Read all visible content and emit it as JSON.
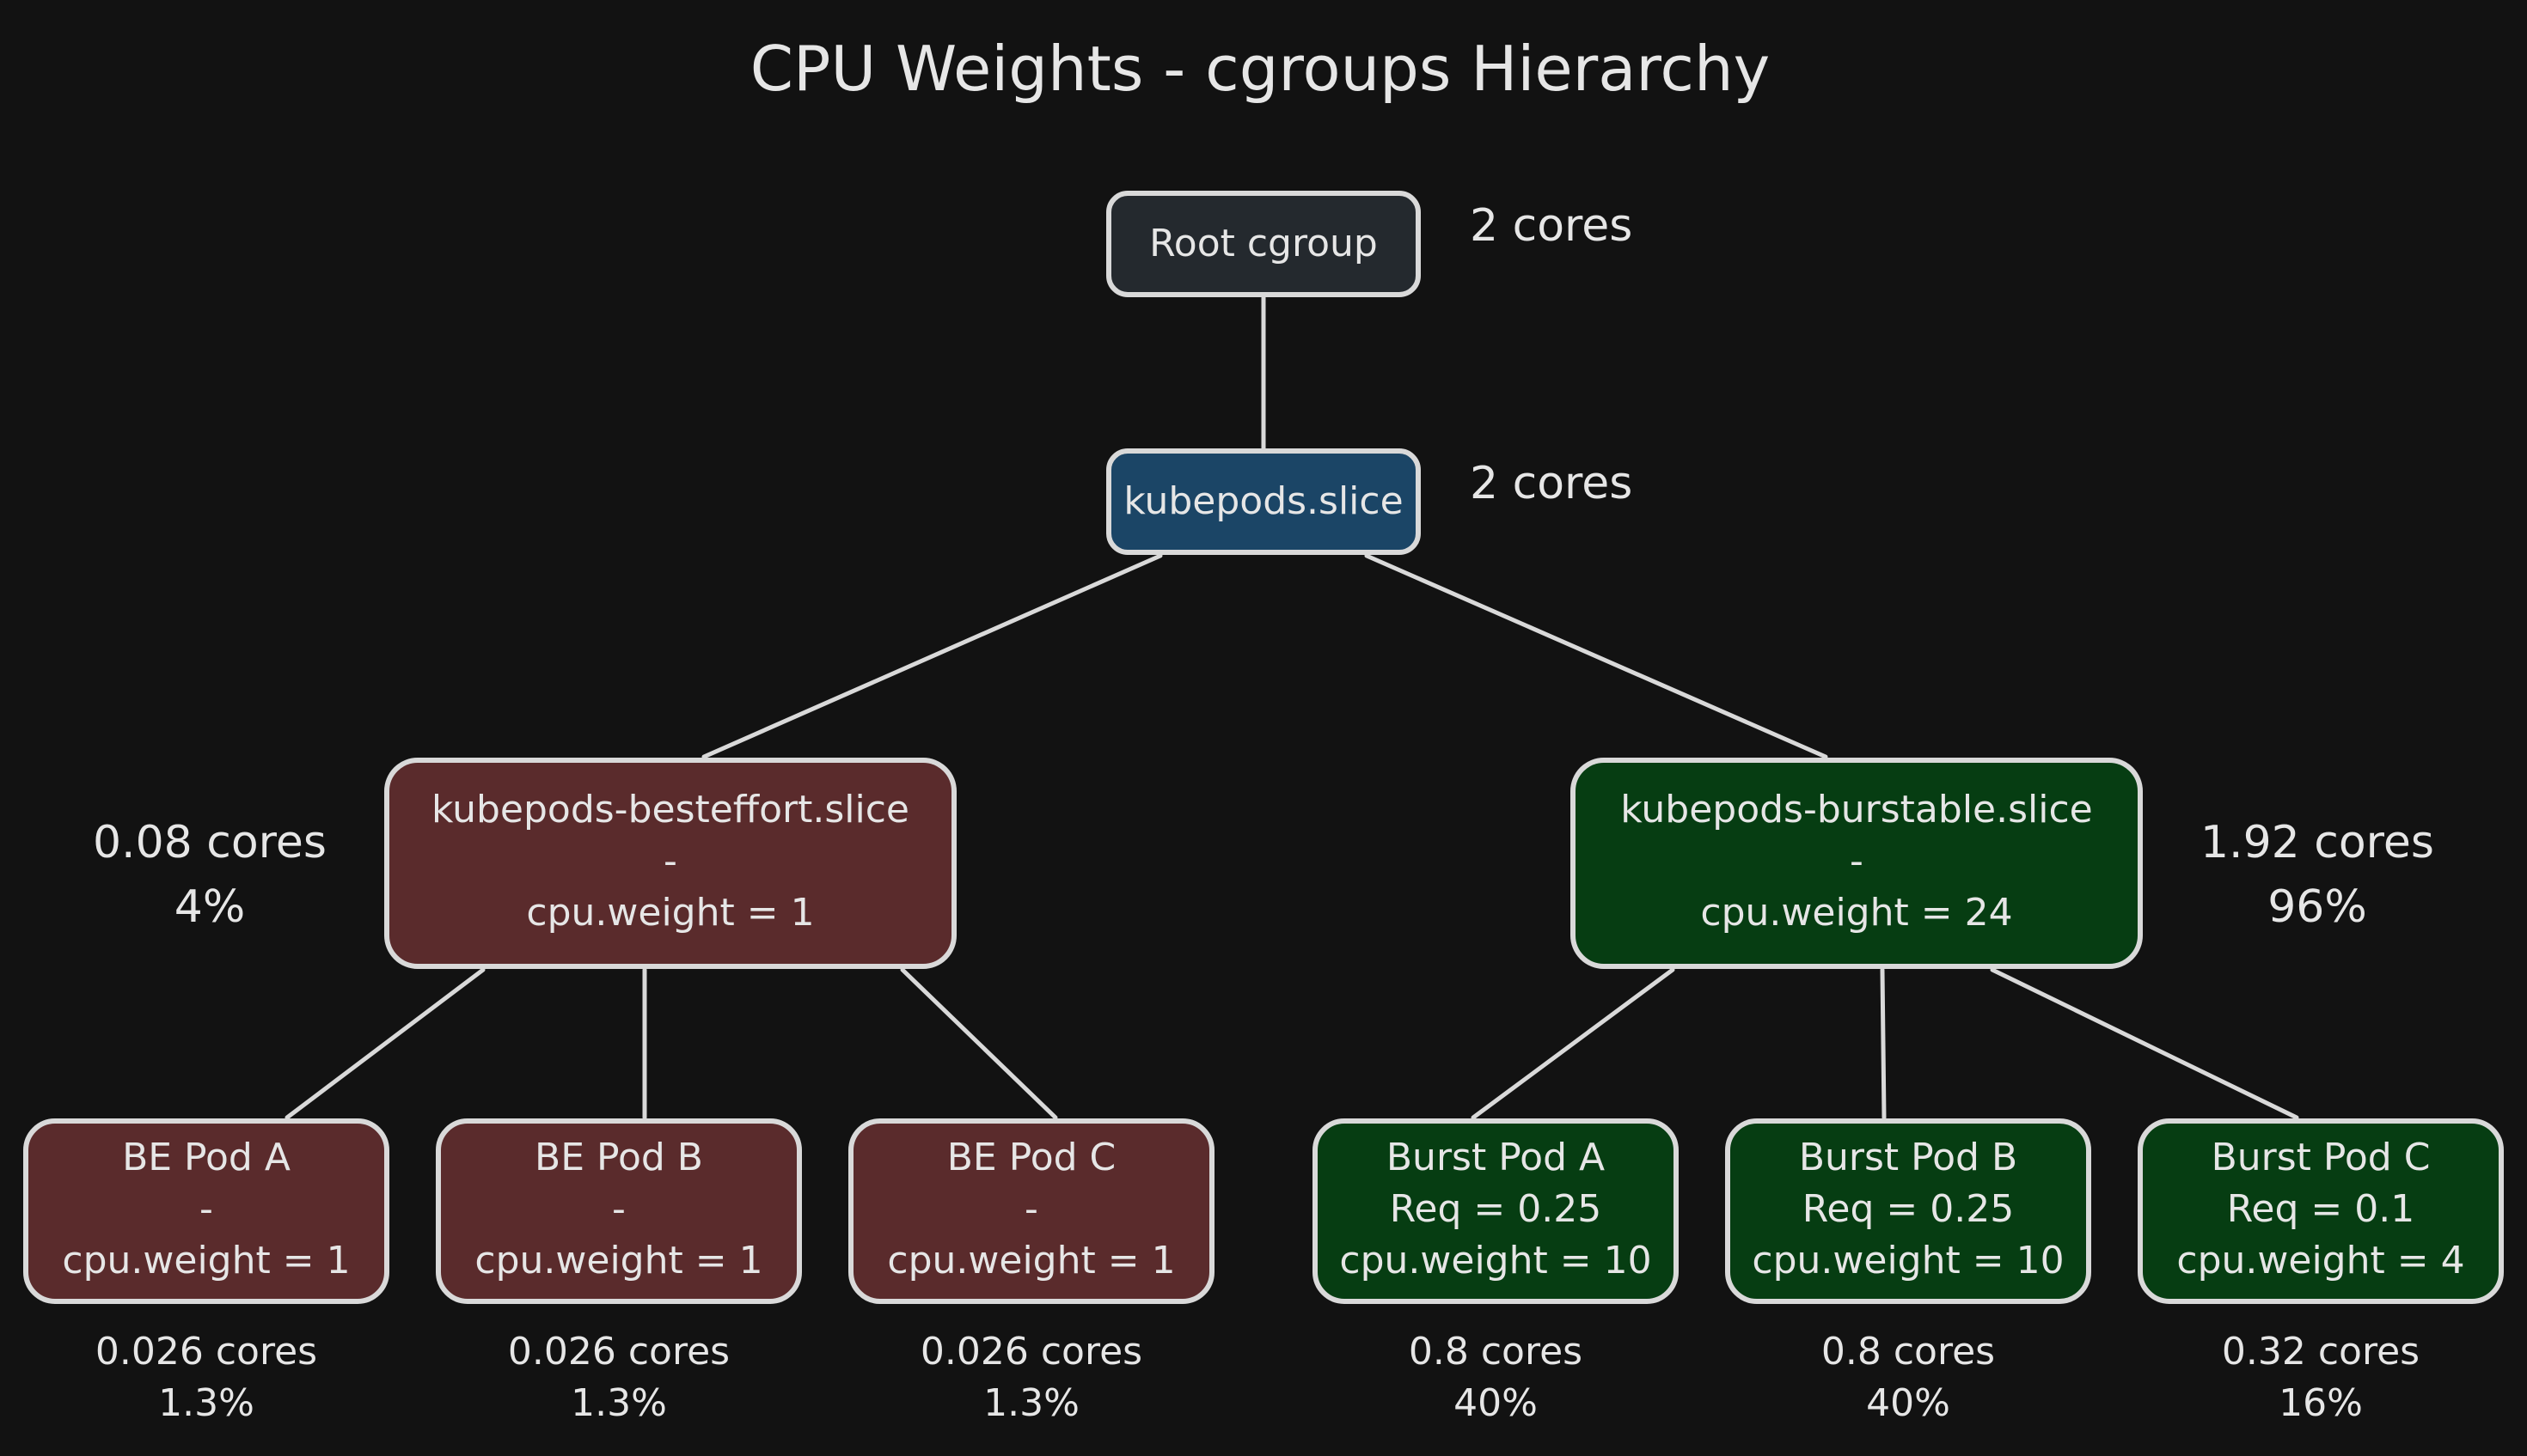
{
  "title": "CPU Weights - cgroups Hierarchy",
  "colors": {
    "background": "#121212",
    "stroke": "#d9d9d9",
    "root": "#24292e",
    "kubepods": "#1b4566",
    "besteffort": "#5a2b2c",
    "burstable": "#063d12"
  },
  "root": {
    "label": "Root cgroup",
    "cores": "2 cores"
  },
  "kubepods": {
    "label": "kubepods.slice",
    "cores": "2 cores"
  },
  "besteffort": {
    "lines": [
      "kubepods-besteffort.slice",
      "-",
      "cpu.weight = 1"
    ],
    "cores": "0.08 cores",
    "percent": "4%"
  },
  "burstable": {
    "lines": [
      "kubepods-burstable.slice",
      "-",
      "cpu.weight = 24"
    ],
    "cores": "1.92 cores",
    "percent": "96%"
  },
  "pods": [
    {
      "lines": [
        "BE Pod A",
        "-",
        "cpu.weight = 1"
      ],
      "cores": "0.026 cores",
      "percent": "1.3%"
    },
    {
      "lines": [
        "BE Pod B",
        "-",
        "cpu.weight = 1"
      ],
      "cores": "0.026 cores",
      "percent": "1.3%"
    },
    {
      "lines": [
        "BE Pod C",
        "-",
        "cpu.weight = 1"
      ],
      "cores": "0.026 cores",
      "percent": "1.3%"
    },
    {
      "lines": [
        "Burst Pod A",
        "Req = 0.25",
        "cpu.weight = 10"
      ],
      "cores": "0.8 cores",
      "percent": "40%"
    },
    {
      "lines": [
        "Burst Pod B",
        "Req = 0.25",
        "cpu.weight = 10"
      ],
      "cores": "0.8 cores",
      "percent": "40%"
    },
    {
      "lines": [
        "Burst Pod C",
        "Req = 0.1",
        "cpu.weight = 4"
      ],
      "cores": "0.32 cores",
      "percent": "16%"
    }
  ]
}
